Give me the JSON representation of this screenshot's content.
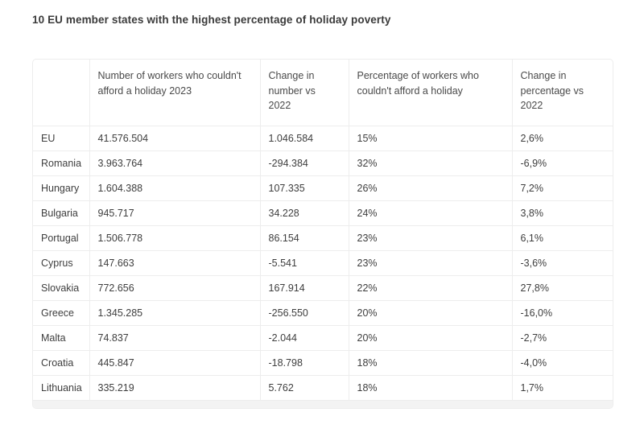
{
  "page": {
    "title": "10 EU member states with the highest percentage of holiday poverty"
  },
  "chart_data": {
    "type": "table",
    "title": "10 EU member states with the highest percentage of holiday poverty",
    "columns": [
      "",
      "Number of workers who couldn't afford a holiday 2023",
      "Change in number vs 2022",
      "Percentage of workers who couldn't afford a holiday",
      "Change in percentage vs 2022"
    ],
    "rows": [
      [
        "EU",
        "41.576.504",
        "1.046.584",
        "15%",
        "2,6%"
      ],
      [
        "Romania",
        "3.963.764",
        "-294.384",
        "32%",
        "-6,9%"
      ],
      [
        "Hungary",
        "1.604.388",
        "107.335",
        "26%",
        "7,2%"
      ],
      [
        "Bulgaria",
        "945.717",
        "34.228",
        "24%",
        "3,8%"
      ],
      [
        "Portugal",
        "1.506.778",
        "86.154",
        "23%",
        "6,1%"
      ],
      [
        "Cyprus",
        "147.663",
        "-5.541",
        "23%",
        "-3,6%"
      ],
      [
        "Slovakia",
        "772.656",
        "167.914",
        "22%",
        "27,8%"
      ],
      [
        "Greece",
        "1.345.285",
        "-256.550",
        "20%",
        "-16,0%"
      ],
      [
        "Malta",
        "74.837",
        "-2.044",
        "20%",
        "-2,7%"
      ],
      [
        "Croatia",
        "445.847",
        "-18.798",
        "18%",
        "-4,0%"
      ],
      [
        "Lithuania",
        "335.219",
        "5.762",
        "18%",
        "1,7%"
      ]
    ],
    "layout": {
      "legend": "none",
      "grid": "table-borders",
      "header_alignment": "top-left",
      "cell_alignment": "middle-left"
    },
    "colors": {
      "background": "#ffffff",
      "border": "#ededed",
      "text": "#3e3e3e",
      "header_text": "#4a4a4a",
      "title_text": "#3b3b3b",
      "footer_strip": "#f3f3f3"
    }
  }
}
